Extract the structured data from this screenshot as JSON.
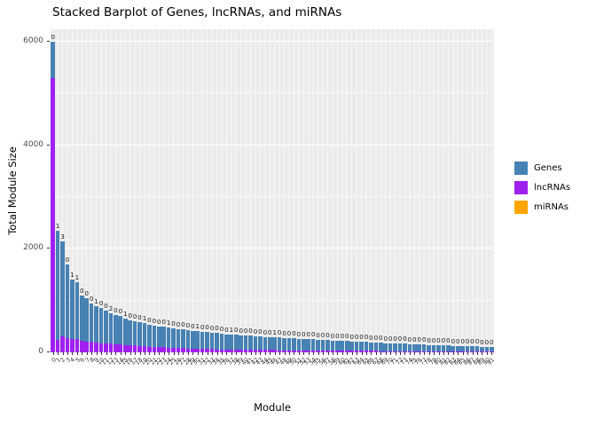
{
  "chart_data": {
    "type": "bar",
    "stacked": true,
    "title": "Stacked Barplot of Genes, lncRNAs, and miRNAs",
    "xlabel": "Module",
    "ylabel": "Total Module Size",
    "ylim": [
      0,
      6240
    ],
    "y_major_ticks": [
      0,
      2000,
      4000,
      6000
    ],
    "y_minor_ticks": [
      1000,
      3000,
      5000
    ],
    "legend_position": "right",
    "panel_background": "#ebebeb",
    "grid_color": "#ffffff",
    "bar_value_labels_source": "miRNAs",
    "stack_order_bottom_to_top": [
      "miRNAs",
      "lncRNAs",
      "Genes"
    ],
    "categories": [
      "0",
      "1",
      "2",
      "3",
      "4",
      "5",
      "6",
      "7",
      "8",
      "9",
      "10",
      "11",
      "12",
      "13",
      "14",
      "15",
      "16",
      "17",
      "18",
      "19",
      "20",
      "21",
      "22",
      "23",
      "24",
      "25",
      "26",
      "27",
      "28",
      "29",
      "30",
      "31",
      "32",
      "33",
      "34",
      "35",
      "36",
      "37",
      "38",
      "39",
      "40",
      "41",
      "42",
      "43",
      "44",
      "45",
      "46",
      "47",
      "48",
      "49",
      "50",
      "51",
      "52",
      "53",
      "54",
      "55",
      "56",
      "57",
      "58",
      "59",
      "60",
      "61",
      "62",
      "63",
      "64",
      "65",
      "66",
      "67",
      "68",
      "69",
      "70",
      "71",
      "72",
      "73",
      "74",
      "75",
      "76",
      "77",
      "78",
      "79",
      "80",
      "81",
      "82",
      "83",
      "84",
      "85",
      "86",
      "87",
      "88",
      "89",
      "90",
      "91"
    ],
    "series": [
      {
        "name": "Genes",
        "color": "#4682b4",
        "values": [
          700,
          2109,
          1847,
          1420,
          1139,
          1099,
          880,
          840,
          750,
          709,
          670,
          630,
          583,
          560,
          550,
          509,
          485,
          470,
          455,
          439,
          430,
          415,
          400,
          395,
          389,
          375,
          370,
          362,
          355,
          348,
          339,
          332,
          325,
          318,
          310,
          302,
          294,
          289,
          286,
          278,
          275,
          271,
          262,
          258,
          254,
          250,
          245,
          242,
          238,
          234,
          230,
          226,
          222,
          218,
          214,
          210,
          206,
          202,
          198,
          194,
          190,
          185,
          181,
          177,
          172,
          171,
          169,
          164,
          160,
          155,
          151,
          146,
          145,
          142,
          138,
          133,
          129,
          127,
          125,
          120,
          119,
          116,
          112,
          110,
          108,
          103,
          102,
          99,
          97,
          95,
          91,
          86
        ]
      },
      {
        "name": "lncRNAs",
        "color": "#a020f0",
        "values": [
          5300,
          240,
          300,
          280,
          260,
          250,
          220,
          210,
          200,
          190,
          180,
          170,
          165,
          160,
          150,
          140,
          135,
          130,
          125,
          120,
          110,
          105,
          100,
          95,
          90,
          85,
          80,
          78,
          75,
          72,
          70,
          68,
          65,
          62,
          60,
          58,
          56,
          55,
          54,
          52,
          50,
          49,
          48,
          47,
          46,
          45,
          44,
          43,
          42,
          41,
          40,
          39,
          38,
          37,
          36,
          35,
          34,
          33,
          32,
          31,
          30,
          30,
          29,
          28,
          28,
          27,
          26,
          26,
          25,
          25,
          24,
          24,
          23,
          23,
          22,
          22,
          21,
          21,
          20,
          20,
          19,
          19,
          18,
          18,
          17,
          17,
          16,
          16,
          15,
          15,
          14,
          14
        ]
      },
      {
        "name": "miRNAs",
        "color": "#ffa500",
        "values": [
          0,
          1,
          3,
          0,
          1,
          1,
          0,
          0,
          0,
          1,
          0,
          0,
          2,
          0,
          0,
          1,
          0,
          0,
          0,
          1,
          0,
          0,
          0,
          0,
          1,
          0,
          0,
          0,
          0,
          0,
          1,
          0,
          0,
          0,
          0,
          0,
          0,
          1,
          0,
          0,
          0,
          0,
          0,
          0,
          0,
          0,
          1,
          0,
          0,
          0,
          0,
          0,
          0,
          0,
          0,
          0,
          0,
          0,
          0,
          0,
          0,
          0,
          0,
          0,
          0,
          0,
          0,
          0,
          0,
          0,
          0,
          0,
          0,
          0,
          0,
          0,
          0,
          0,
          0,
          0,
          0,
          0,
          0,
          0,
          0,
          0,
          0,
          0,
          0,
          0,
          0,
          0
        ]
      }
    ]
  }
}
